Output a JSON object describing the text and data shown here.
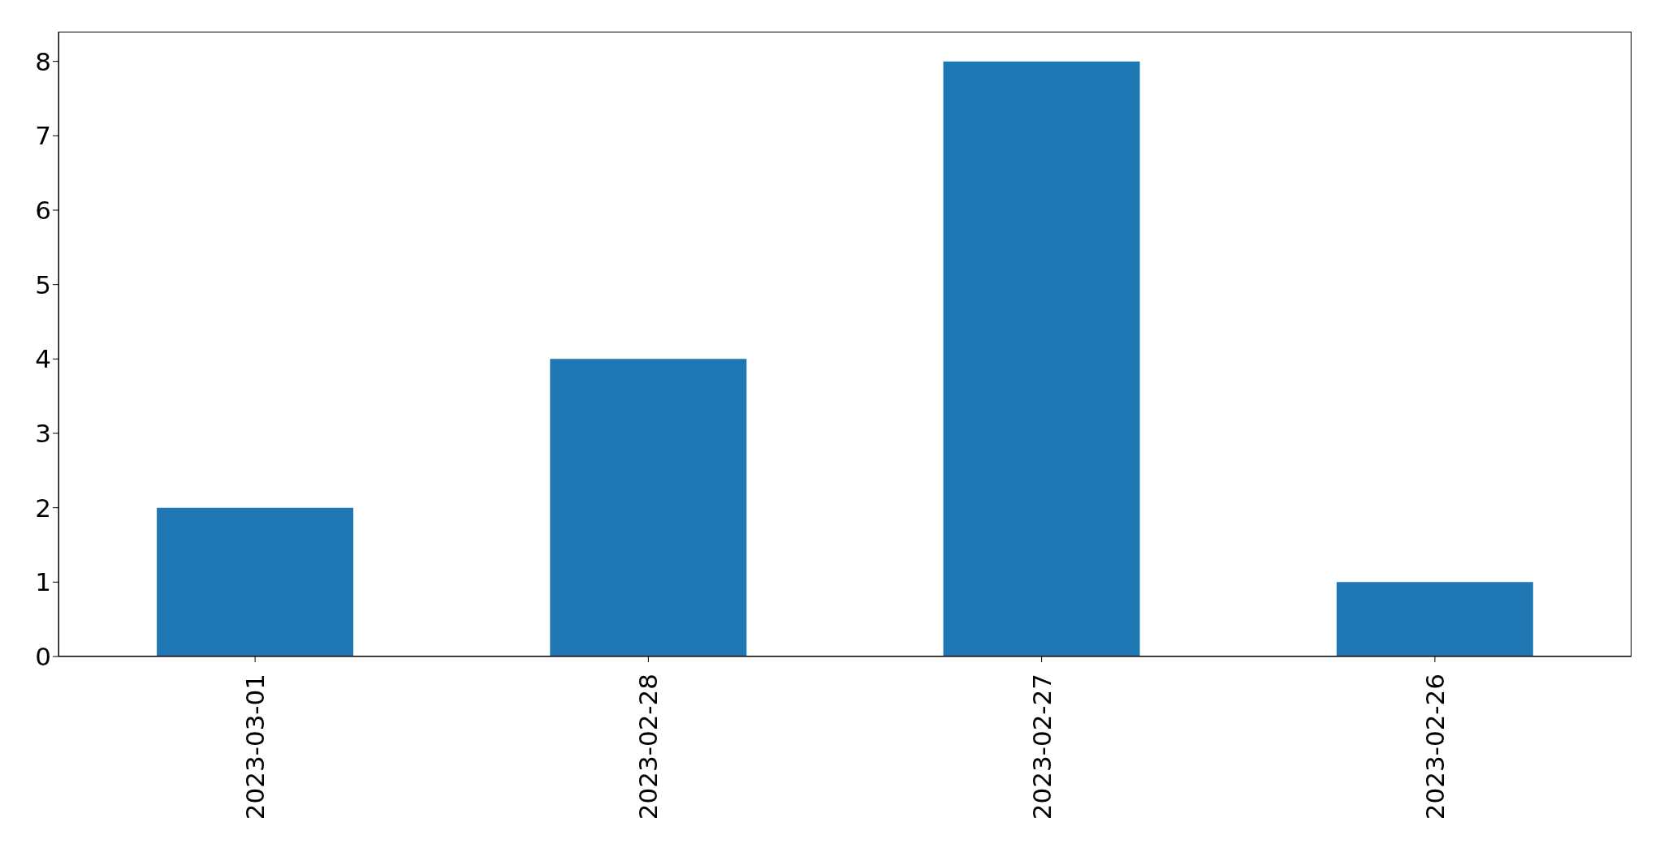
{
  "chart_data": {
    "type": "bar",
    "categories": [
      "2023-03-01",
      "2023-02-28",
      "2023-02-27",
      "2023-02-26"
    ],
    "values": [
      2,
      4,
      8,
      1
    ],
    "color": "#1f77b4",
    "ylim": [
      0,
      8.4
    ],
    "yticks": [
      0,
      1,
      2,
      3,
      4,
      5,
      6,
      7,
      8
    ],
    "grid": false,
    "legend": false
  }
}
